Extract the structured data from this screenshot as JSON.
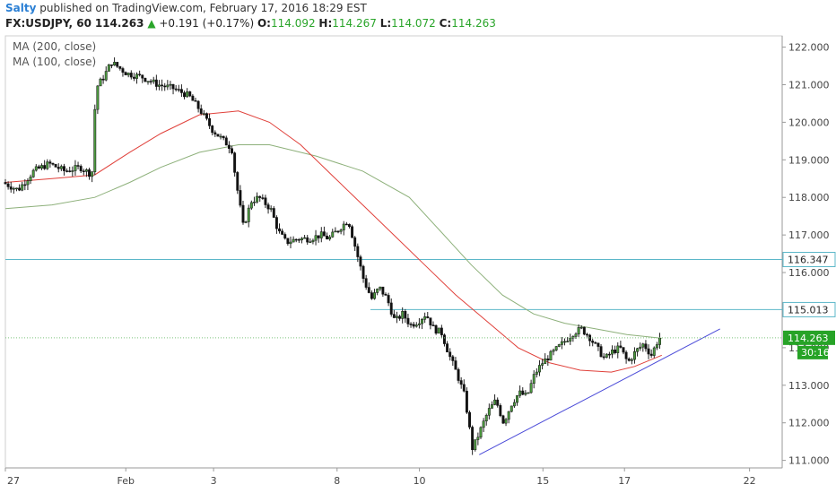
{
  "header": {
    "user": "Salty",
    "published_text": "published on TradingView.com, February 17, 2016 18:29 EST"
  },
  "quote": {
    "symbol": "FX:USDJPY, 60",
    "last": "114.263",
    "change": "+0.191 (+0.17%)",
    "open_label": "O:",
    "open": "114.092",
    "high_label": "H:",
    "high": "114.267",
    "low_label": "L:",
    "low": "114.072",
    "close_label": "C:",
    "close": "114.263"
  },
  "indicators": [
    "MA (200, close)",
    "MA (100, close)"
  ],
  "colors": {
    "candle_up": "#4c9a3f",
    "candle_down": "#111111",
    "ma100": "#e0403a",
    "ma200": "#8db07a",
    "hline": "#5bb7c9",
    "trendline": "#4a4ad8",
    "price_tag": "#27a327"
  },
  "chart_data": {
    "type": "candlestick",
    "ylim": [
      110.8,
      122.3
    ],
    "y_ticks": [
      111,
      112,
      113,
      114,
      115,
      116,
      117,
      118,
      119,
      120,
      121,
      122
    ],
    "y_tick_labels": [
      "111.000",
      "112.000",
      "113.000",
      "114.000",
      "115.000",
      "116.000",
      "117.000",
      "118.000",
      "119.000",
      "120.000",
      "121.000",
      "122.000"
    ],
    "x_labels": [
      {
        "label": "27",
        "at": 0.0
      },
      {
        "label": "Feb",
        "at": 0.155
      },
      {
        "label": "3",
        "at": 0.268
      },
      {
        "label": "8",
        "at": 0.427
      },
      {
        "label": "10",
        "at": 0.533
      },
      {
        "label": "15",
        "at": 0.692
      },
      {
        "label": "17",
        "at": 0.797
      },
      {
        "label": "22",
        "at": 0.958
      }
    ],
    "price_path": [
      [
        0.0,
        118.4
      ],
      [
        0.02,
        118.2
      ],
      [
        0.04,
        118.7
      ],
      [
        0.06,
        118.9
      ],
      [
        0.08,
        118.7
      ],
      [
        0.1,
        118.8
      ],
      [
        0.115,
        118.6
      ],
      [
        0.12,
        120.9
      ],
      [
        0.13,
        121.2
      ],
      [
        0.14,
        121.6
      ],
      [
        0.16,
        121.3
      ],
      [
        0.18,
        121.2
      ],
      [
        0.2,
        121.0
      ],
      [
        0.22,
        120.9
      ],
      [
        0.24,
        120.7
      ],
      [
        0.255,
        120.3
      ],
      [
        0.27,
        119.8
      ],
      [
        0.285,
        119.5
      ],
      [
        0.295,
        119.3
      ],
      [
        0.3,
        118.5
      ],
      [
        0.31,
        117.2
      ],
      [
        0.32,
        117.9
      ],
      [
        0.33,
        118.0
      ],
      [
        0.345,
        117.7
      ],
      [
        0.355,
        117.1
      ],
      [
        0.365,
        116.8
      ],
      [
        0.38,
        116.9
      ],
      [
        0.395,
        116.9
      ],
      [
        0.41,
        117.0
      ],
      [
        0.42,
        116.9
      ],
      [
        0.435,
        117.2
      ],
      [
        0.445,
        117.4
      ],
      [
        0.455,
        116.6
      ],
      [
        0.465,
        115.8
      ],
      [
        0.475,
        115.3
      ],
      [
        0.485,
        115.6
      ],
      [
        0.495,
        115.3
      ],
      [
        0.505,
        114.7
      ],
      [
        0.515,
        114.9
      ],
      [
        0.525,
        114.6
      ],
      [
        0.535,
        114.7
      ],
      [
        0.545,
        114.9
      ],
      [
        0.555,
        114.5
      ],
      [
        0.565,
        114.4
      ],
      [
        0.575,
        113.8
      ],
      [
        0.585,
        113.3
      ],
      [
        0.595,
        112.7
      ],
      [
        0.605,
        111.3
      ],
      [
        0.615,
        111.8
      ],
      [
        0.625,
        112.3
      ],
      [
        0.635,
        112.6
      ],
      [
        0.645,
        112.0
      ],
      [
        0.655,
        112.5
      ],
      [
        0.665,
        112.8
      ],
      [
        0.675,
        112.7
      ],
      [
        0.685,
        113.3
      ],
      [
        0.695,
        113.6
      ],
      [
        0.705,
        113.8
      ],
      [
        0.715,
        114.0
      ],
      [
        0.725,
        114.2
      ],
      [
        0.735,
        114.4
      ],
      [
        0.745,
        114.5
      ],
      [
        0.755,
        114.3
      ],
      [
        0.765,
        114.0
      ],
      [
        0.775,
        113.7
      ],
      [
        0.785,
        113.9
      ],
      [
        0.795,
        114.0
      ],
      [
        0.805,
        113.6
      ],
      [
        0.815,
        113.9
      ],
      [
        0.825,
        114.1
      ],
      [
        0.835,
        113.8
      ],
      [
        0.845,
        114.26
      ]
    ],
    "ma100_path": [
      [
        0.0,
        118.4
      ],
      [
        0.06,
        118.5
      ],
      [
        0.115,
        118.6
      ],
      [
        0.16,
        119.2
      ],
      [
        0.2,
        119.7
      ],
      [
        0.25,
        120.2
      ],
      [
        0.3,
        120.3
      ],
      [
        0.34,
        120.0
      ],
      [
        0.38,
        119.4
      ],
      [
        0.42,
        118.6
      ],
      [
        0.46,
        117.8
      ],
      [
        0.5,
        117.0
      ],
      [
        0.54,
        116.2
      ],
      [
        0.58,
        115.4
      ],
      [
        0.62,
        114.7
      ],
      [
        0.66,
        114.0
      ],
      [
        0.7,
        113.6
      ],
      [
        0.74,
        113.4
      ],
      [
        0.78,
        113.35
      ],
      [
        0.81,
        113.5
      ],
      [
        0.845,
        113.8
      ]
    ],
    "ma200_path": [
      [
        0.0,
        117.7
      ],
      [
        0.06,
        117.8
      ],
      [
        0.115,
        118.0
      ],
      [
        0.16,
        118.4
      ],
      [
        0.2,
        118.8
      ],
      [
        0.25,
        119.2
      ],
      [
        0.3,
        119.4
      ],
      [
        0.34,
        119.4
      ],
      [
        0.4,
        119.1
      ],
      [
        0.46,
        118.7
      ],
      [
        0.52,
        118.0
      ],
      [
        0.56,
        117.1
      ],
      [
        0.6,
        116.2
      ],
      [
        0.64,
        115.4
      ],
      [
        0.68,
        114.9
      ],
      [
        0.72,
        114.65
      ],
      [
        0.76,
        114.5
      ],
      [
        0.8,
        114.35
      ],
      [
        0.845,
        114.25
      ]
    ],
    "hlines": [
      {
        "value": 116.347,
        "label": "116.347",
        "from": 0.0
      },
      {
        "value": 115.013,
        "label": "115.013",
        "from": 0.47
      }
    ],
    "trendline": {
      "start": [
        0.61,
        111.15
      ],
      "end": [
        0.92,
        114.5
      ]
    },
    "last_price_tag": {
      "value": 114.263,
      "label": "114.263",
      "timer": "30:16"
    }
  }
}
